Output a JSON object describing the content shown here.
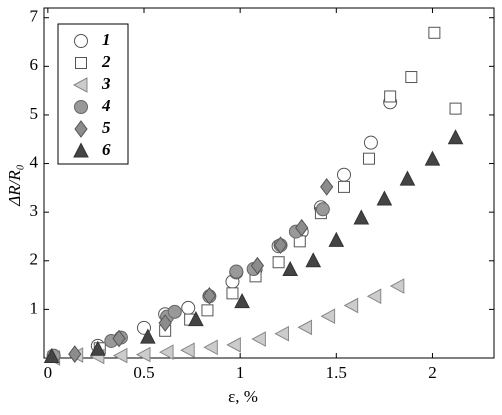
{
  "chart_data": {
    "type": "scatter",
    "x_label": "ε, %",
    "y_label": "ΔR/R₀",
    "xlim": [
      -0.02,
      2.32
    ],
    "ylim": [
      0,
      7.2
    ],
    "xticks": [
      0,
      0.5,
      1,
      1.5,
      2
    ],
    "yticks": [
      1,
      2,
      3,
      4,
      5,
      6,
      7
    ],
    "legend": "upper left",
    "series": [
      {
        "name": "1",
        "marker": "circle",
        "color": "#555555",
        "fill": "#ffffff",
        "x": [
          0.03,
          0.26,
          0.5,
          0.61,
          0.73,
          0.96,
          0.98,
          1.08,
          1.2,
          1.32,
          1.42,
          1.54,
          1.68,
          1.78
        ],
        "values": [
          0.04,
          0.25,
          0.62,
          0.9,
          1.03,
          1.57,
          1.76,
          1.82,
          2.3,
          2.6,
          3.1,
          3.77,
          4.43,
          5.26
        ]
      },
      {
        "name": "2",
        "marker": "square",
        "color": "#555555",
        "fill": "#ffffff",
        "x": [
          0.03,
          0.27,
          0.61,
          0.74,
          0.83,
          0.96,
          1.08,
          1.2,
          1.31,
          1.42,
          1.54,
          1.67,
          1.78,
          1.89,
          2.01,
          2.12
        ],
        "values": [
          0.02,
          0.2,
          0.56,
          0.79,
          0.98,
          1.33,
          1.68,
          1.97,
          2.4,
          2.98,
          3.52,
          4.1,
          5.38,
          5.78,
          6.69,
          5.13
        ]
      },
      {
        "name": "3",
        "marker": "triangle-left",
        "color": "#888888",
        "fill": "#cccccc",
        "x": [
          0.03,
          0.15,
          0.26,
          0.38,
          0.5,
          0.62,
          0.73,
          0.85,
          0.97,
          1.1,
          1.22,
          1.34,
          1.46,
          1.58,
          1.7,
          1.82
        ],
        "values": [
          0,
          0.06,
          0.03,
          0.05,
          0.07,
          0.12,
          0.16,
          0.22,
          0.27,
          0.39,
          0.5,
          0.63,
          0.86,
          1.08,
          1.27,
          1.48
        ]
      },
      {
        "name": "4",
        "marker": "circle",
        "color": "#666666",
        "fill": "#999999",
        "x": [
          0.03,
          0.33,
          0.38,
          0.62,
          0.66,
          0.84,
          0.98,
          1.07,
          1.21,
          1.29,
          1.43
        ],
        "values": [
          0.05,
          0.35,
          0.42,
          0.85,
          0.95,
          1.27,
          1.78,
          1.83,
          2.32,
          2.6,
          3.06
        ]
      },
      {
        "name": "5",
        "marker": "diamond",
        "color": "#555555",
        "fill": "#8c8c8c",
        "x": [
          0.14,
          0.37,
          0.61,
          0.84,
          1.09,
          1.21,
          1.32,
          1.45
        ],
        "values": [
          0.08,
          0.4,
          0.72,
          1.28,
          1.9,
          2.32,
          2.68,
          3.52
        ]
      },
      {
        "name": "6",
        "marker": "triangle-up",
        "color": "#333333",
        "fill": "#444444",
        "x": [
          0.02,
          0.26,
          0.52,
          0.77,
          1.01,
          1.26,
          1.38,
          1.5,
          1.63,
          1.75,
          1.87,
          2.0,
          2.12
        ],
        "values": [
          0.03,
          0.18,
          0.43,
          0.79,
          1.16,
          1.82,
          2.0,
          2.42,
          2.88,
          3.27,
          3.68,
          4.09,
          4.53
        ]
      }
    ]
  }
}
